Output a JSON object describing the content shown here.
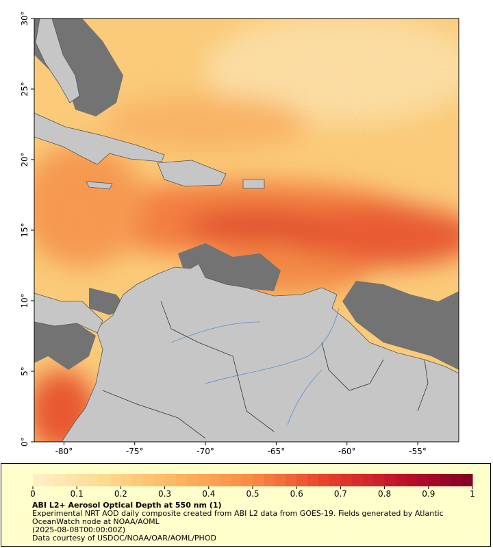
{
  "map": {
    "xlim": [
      -82.1,
      -52.1
    ],
    "ylim": [
      0,
      30
    ],
    "xticks": [
      {
        "value": -80,
        "label": "-80°"
      },
      {
        "value": -75,
        "label": "-75°"
      },
      {
        "value": -70,
        "label": "-70°"
      },
      {
        "value": -65,
        "label": "-65°"
      },
      {
        "value": -60,
        "label": "-60°"
      },
      {
        "value": -55,
        "label": "-55°"
      }
    ],
    "yticks": [
      {
        "value": 0,
        "label": "0°"
      },
      {
        "value": 5,
        "label": "5°"
      },
      {
        "value": 10,
        "label": "10°"
      },
      {
        "value": 15,
        "label": "15°"
      },
      {
        "value": 20,
        "label": "20°"
      },
      {
        "value": 25,
        "label": "25°"
      },
      {
        "value": 30,
        "label": "30°"
      }
    ]
  },
  "colorbar": {
    "lim": [
      0,
      1
    ],
    "ticks": [
      0,
      0.1,
      0.2,
      0.3,
      0.4,
      0.5,
      0.6,
      0.7,
      0.8,
      0.9,
      1
    ],
    "colors": [
      "#fff0c8",
      "#fed98e",
      "#fdb460",
      "#f98b44",
      "#e8402e",
      "#c0122a",
      "#800026"
    ]
  },
  "caption": {
    "title": "ABI L2+ Aerosol Optical Depth at 550 nm (1)",
    "description": "Experimental NRT AOD daily composite created from ABI L2 data from GOES-19. Fields generated by Atlantic OceanWatch node at NOAA/AOML",
    "date": "(2025-08-08T00:00:00Z)",
    "credit": "Data courtesy of USDOC/NOAA/OAR/AOML/PHOD"
  }
}
